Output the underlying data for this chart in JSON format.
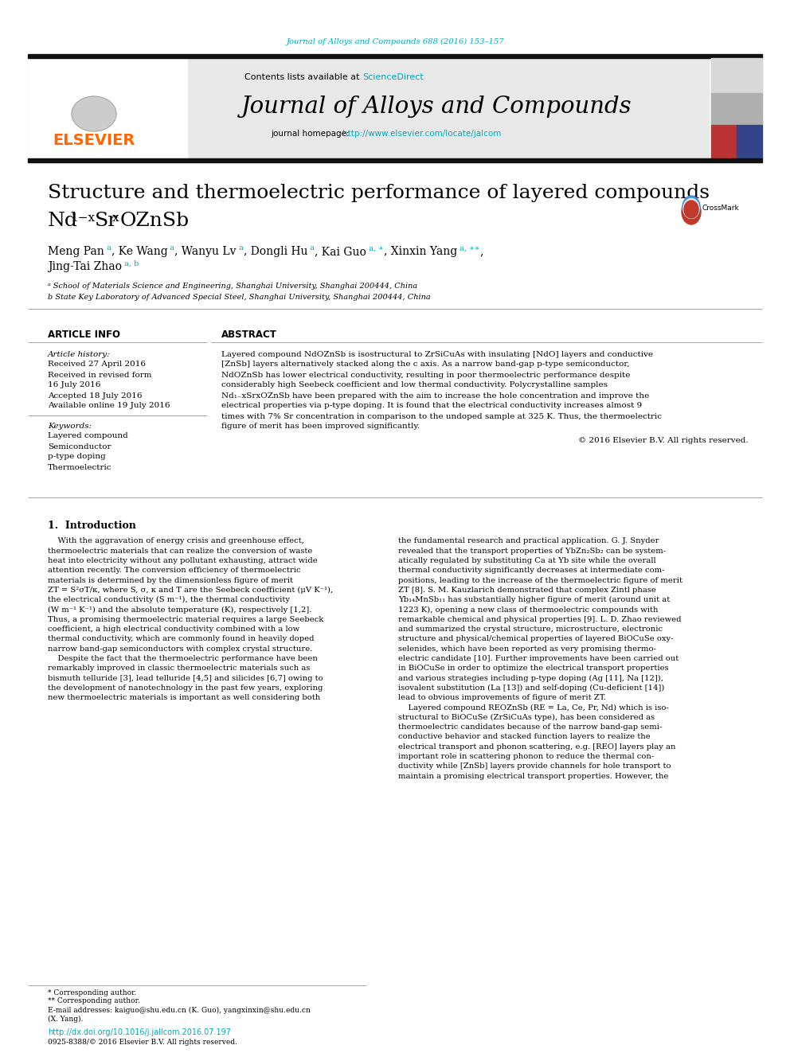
{
  "journal_ref": "Journal of Alloys and Compounds 688 (2016) 153–157",
  "journal_title": "Journal of Alloys and Compounds",
  "contents_prefix": "Contents lists available at ",
  "contents_link": "ScienceDirect",
  "homepage_prefix": "journal homepage: ",
  "homepage_url": "http://www.elsevier.com/locate/jalcom",
  "cyan": "#00aabb",
  "orange": "#ff6600",
  "black": "#000000",
  "light_gray": "#e8e8e8",
  "header_bar": "#111111",
  "bg": "#ffffff",
  "paper_title_l1": "Structure and thermoelectric performance of layered compounds",
  "affil_a": "ᵃ School of Materials Science and Engineering, Shanghai University, Shanghai 200444, China",
  "affil_b": "b State Key Laboratory of Advanced Special Steel, Shanghai University, Shanghai 200444, China",
  "art_info_hdr": "ARTICLE INFO",
  "abstract_hdr": "ABSTRACT",
  "history_label": "Article history:",
  "received": "Received 27 April 2016",
  "received_revised": "Received in revised form",
  "revised_date": "16 July 2016",
  "accepted": "Accepted 18 July 2016",
  "available": "Available online 19 July 2016",
  "kw_label": "Keywords:",
  "keywords": [
    "Layered compound",
    "Semiconductor",
    "p-type doping",
    "Thermoelectric"
  ],
  "abstract": "Layered compound NdOZnSb is isostructural to ZrSiCuAs with insulating [NdO] layers and conductive\n[ZnSb] layers alternatively stacked along the c axis. As a narrow band-gap p-type semiconductor,\nNdOZnSb has lower electrical conductivity, resulting in poor thermoelectric performance despite\nconsiderably high Seebeck coefficient and low thermal conductivity. Polycrystalline samples\nNd₁₋xSrxOZnSb have been prepared with the aim to increase the hole concentration and improve the\nelectrical properties via p-type doping. It is found that the electrical conductivity increases almost 9\ntimes with 7% Sr concentration in comparison to the undoped sample at 325 K. Thus, the thermoelectric\nfigure of merit has been improved significantly.",
  "copyright": "© 2016 Elsevier B.V. All rights reserved.",
  "intro_hdr": "1.  Introduction",
  "intro_c1": [
    "    With the aggravation of energy crisis and greenhouse effect,",
    "thermoelectric materials that can realize the conversion of waste",
    "heat into electricity without any pollutant exhausting, attract wide",
    "attention recently. The conversion efficiency of thermoelectric",
    "materials is determined by the dimensionless figure of merit",
    "ZT = S²σT/κ, where S, σ, κ and T are the Seebeck coefficient (μV K⁻¹),",
    "the electrical conductivity (S m⁻¹), the thermal conductivity",
    "(W m⁻¹ K⁻¹) and the absolute temperature (K), respectively [1,2].",
    "Thus, a promising thermoelectric material requires a large Seebeck",
    "coefficient, a high electrical conductivity combined with a low",
    "thermal conductivity, which are commonly found in heavily doped",
    "narrow band-gap semiconductors with complex crystal structure.",
    "    Despite the fact that the thermoelectric performance have been",
    "remarkably improved in classic thermoelectric materials such as",
    "bismuth telluride [3], lead telluride [4,5] and silicides [6,7] owing to",
    "the development of nanotechnology in the past few years, exploring",
    "new thermoelectric materials is important as well considering both"
  ],
  "intro_c2": [
    "the fundamental research and practical application. G. J. Snyder",
    "revealed that the transport properties of YbZn₂Sb₂ can be system-",
    "atically regulated by substituting Ca at Yb site while the overall",
    "thermal conductivity significantly decreases at intermediate com-",
    "positions, leading to the increase of the thermoelectric figure of merit",
    "ZT [8]. S. M. Kauzlarich demonstrated that complex Zintl phase",
    "Yb₁₄MnSb₁₁ has substantially higher figure of merit (around unit at",
    "1223 K), opening a new class of thermoelectric compounds with",
    "remarkable chemical and physical properties [9]. L. D. Zhao reviewed",
    "and summarized the crystal structure, microstructure, electronic",
    "structure and physical/chemical properties of layered BiOCuSe oxy-",
    "selenides, which have been reported as very promising thermo-",
    "electric candidate [10]. Further improvements have been carried out",
    "in BiOCuSe in order to optimize the electrical transport properties",
    "and various strategies including p-type doping (Ag [11], Na [12]),",
    "isovalent substitution (La [13]) and self-doping (Cu-deficient [14])",
    "lead to obvious improvements of figure of merit ZT.",
    "    Layered compound REOZnSb (RE = La, Ce, Pr, Nd) which is iso-",
    "structural to BiOCuSe (ZrSiCuAs type), has been considered as",
    "thermoelectric candidates because of the narrow band-gap semi-",
    "conductive behavior and stacked function layers to realize the",
    "electrical transport and phonon scattering, e.g. [REO] layers play an",
    "important role in scattering phonon to reduce the thermal con-",
    "ductivity while [ZnSb] layers provide channels for hole transport to",
    "maintain a promising electrical transport properties. However, the"
  ],
  "footer1": "* Corresponding author.",
  "footer2": "** Corresponding author.",
  "footer3": "E-mail addresses: kaiguo@shu.edu.cn (K. Guo), yangxinxin@shu.edu.cn",
  "footer4": "(X. Yang).",
  "doi": "http://dx.doi.org/10.1016/j.jallcom.2016.07.197",
  "issn": "0925-8388/© 2016 Elsevier B.V. All rights reserved."
}
